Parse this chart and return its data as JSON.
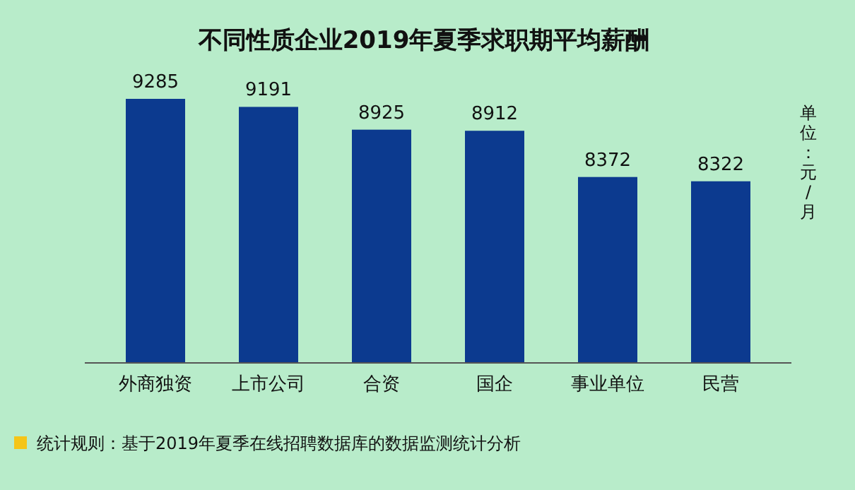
{
  "chart_data": {
    "type": "bar",
    "title": "不同性质企业2019年夏季求职期平均薪酬",
    "ylabel": "单位：元/月",
    "categories": [
      "外商独资",
      "上市公司",
      "合资",
      "国企",
      "事业单位",
      "民营"
    ],
    "values": [
      9285,
      9191,
      8925,
      8912,
      8372,
      8322
    ],
    "color": "#0c3a8f",
    "ylim": [
      6200,
      9285
    ],
    "data_labels": true,
    "annotations": [
      "统计规则：基于2019年夏季在线招聘数据库的数据监测统计分析"
    ]
  }
}
